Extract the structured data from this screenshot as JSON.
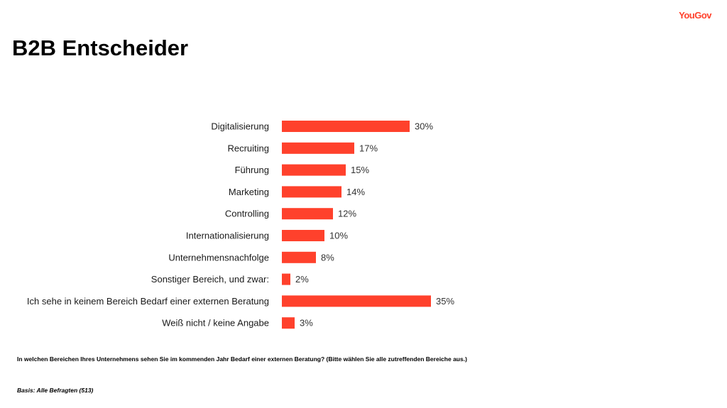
{
  "brand": {
    "logo_text": "YouGov",
    "accent_color": "#ff412c"
  },
  "page": {
    "title": "B2B Entscheider",
    "question": "In welchen Bereichen Ihres Unternehmens sehen Sie im kommenden Jahr Bedarf einer externen Beratung? (Bitte wählen Sie alle zutreffenden Bereiche aus.)",
    "basis": "Basis: Alle Befragten (513)"
  },
  "chart_data": {
    "type": "bar",
    "orientation": "horizontal",
    "categories": [
      "Digitalisierung",
      "Recruiting",
      "Führung",
      "Marketing",
      "Controlling",
      "Internationalisierung",
      "Unternehmensnachfolge",
      "Sonstiger Bereich, und zwar:",
      "Ich sehe in keinem Bereich Bedarf einer externen Beratung",
      "Weiß nicht / keine Angabe"
    ],
    "values": [
      30,
      17,
      15,
      14,
      12,
      10,
      8,
      2,
      35,
      3
    ],
    "value_labels": [
      "30%",
      "17%",
      "15%",
      "14%",
      "12%",
      "10%",
      "8%",
      "2%",
      "35%",
      "3%"
    ],
    "unit": "%",
    "bar_color": "#ff412c",
    "grid": false,
    "legend": false
  }
}
